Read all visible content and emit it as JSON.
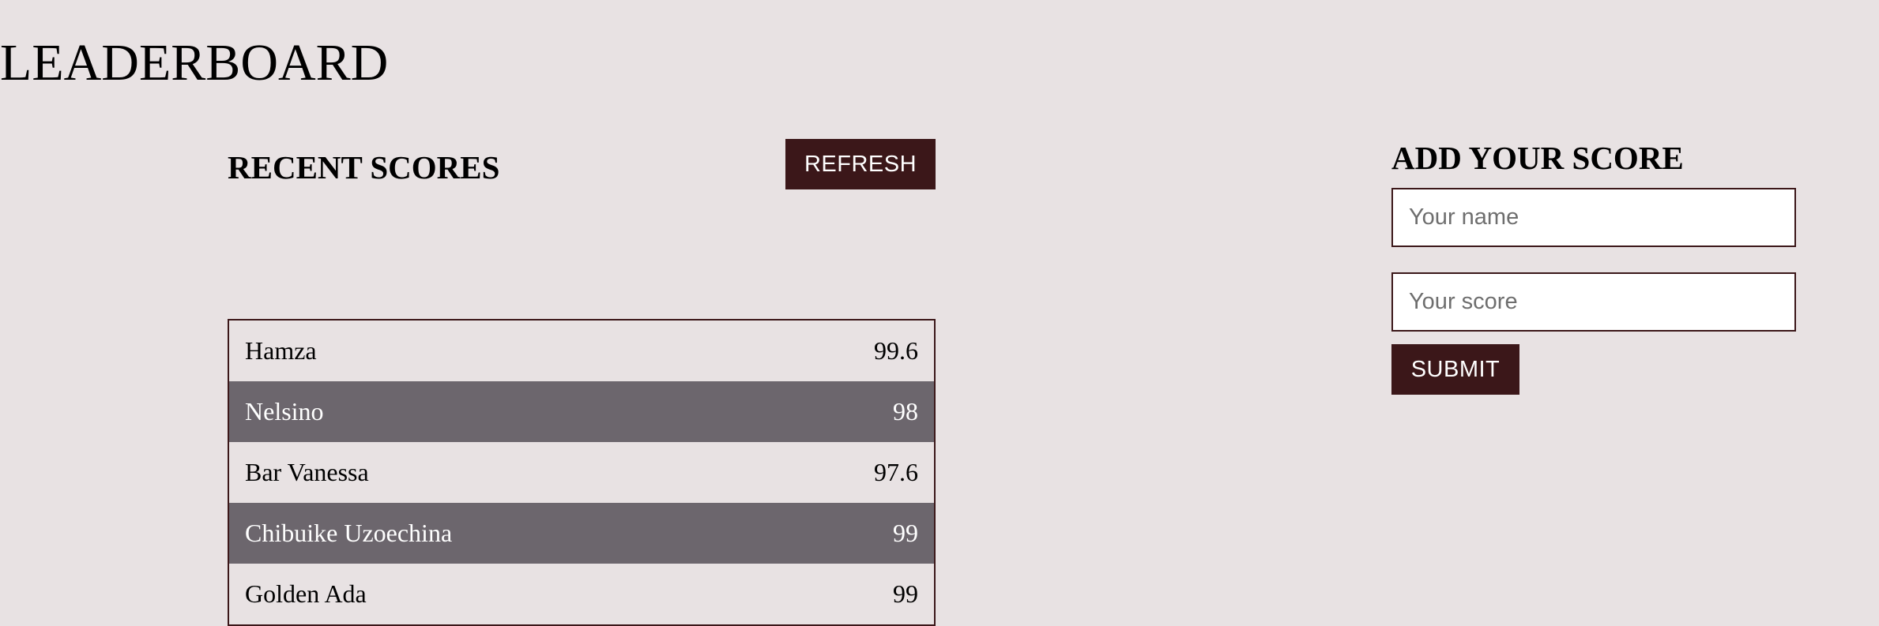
{
  "page": {
    "title": "LEADERBOARD"
  },
  "recent": {
    "heading": "RECENT SCORES",
    "refresh_label": "REFRESH",
    "scores": [
      {
        "name": "Hamza",
        "score": "99.6"
      },
      {
        "name": "Nelsino",
        "score": "98"
      },
      {
        "name": "Bar Vanessa",
        "score": "97.6"
      },
      {
        "name": "Chibuike Uzoechina",
        "score": "99"
      },
      {
        "name": "Golden Ada",
        "score": "99"
      }
    ]
  },
  "add_score": {
    "heading": "ADD YOUR SCORE",
    "name_placeholder": "Your name",
    "name_value": "",
    "score_placeholder": "Your score",
    "score_value": "",
    "submit_label": "SUBMIT"
  },
  "colors": {
    "background": "#e8e2e3",
    "accent": "#3b1719",
    "alt_row": "#6c666d"
  }
}
